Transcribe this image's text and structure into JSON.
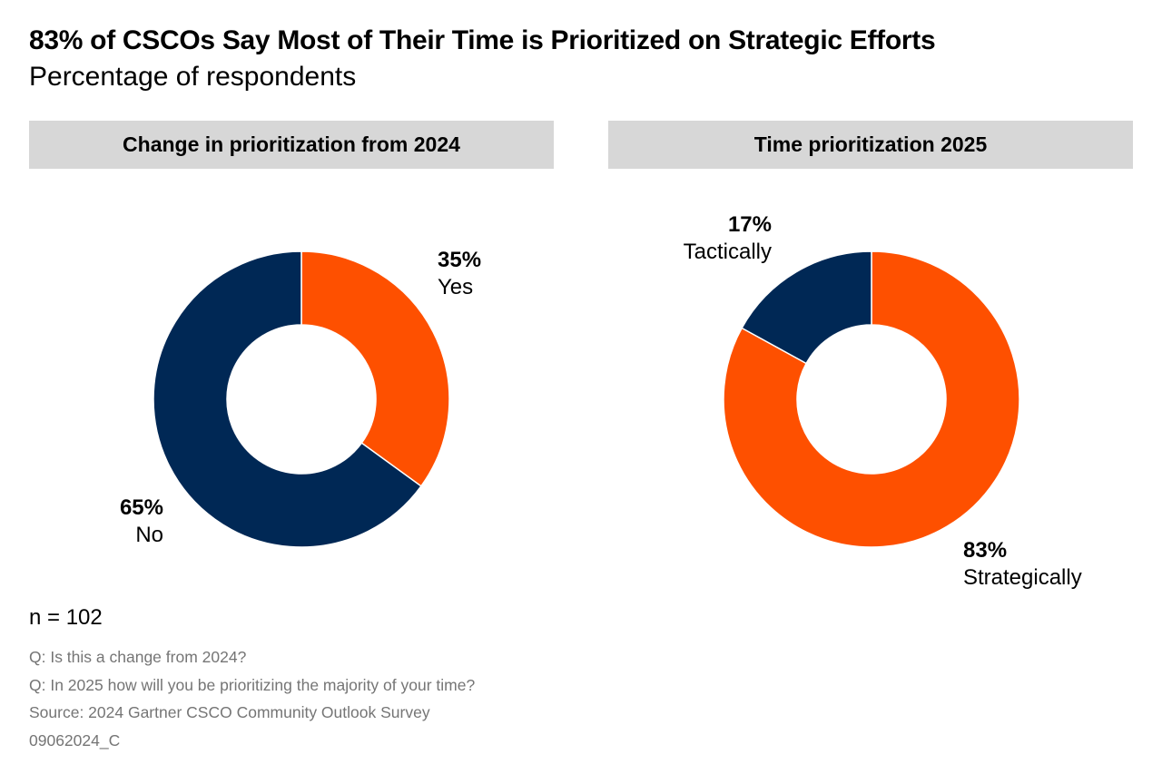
{
  "title": "83% of CSCOs Say Most of Their Time is Prioritized on Strategic Efforts",
  "subtitle": "Percentage of respondents",
  "chart_data": [
    {
      "type": "pie",
      "donut": true,
      "title": "Change in prioritization from 2024",
      "categories": [
        "Yes",
        "No"
      ],
      "values": [
        35,
        65
      ],
      "value_labels": [
        "35%",
        "65%"
      ],
      "colors": [
        "#fe5000",
        "#002855"
      ]
    },
    {
      "type": "pie",
      "donut": true,
      "title": "Time prioritization 2025",
      "categories": [
        "Strategically",
        "Tactically"
      ],
      "values": [
        83,
        17
      ],
      "value_labels": [
        "83%",
        "17%"
      ],
      "colors": [
        "#fe5000",
        "#002855"
      ]
    }
  ],
  "footer": {
    "n": "n = 102",
    "notes": [
      "Q: Is this a change from 2024?",
      "Q: In 2025 how will you be prioritizing the majority of your time?",
      "Source: 2024 Gartner CSCO Community Outlook Survey",
      "09062024_C"
    ]
  }
}
